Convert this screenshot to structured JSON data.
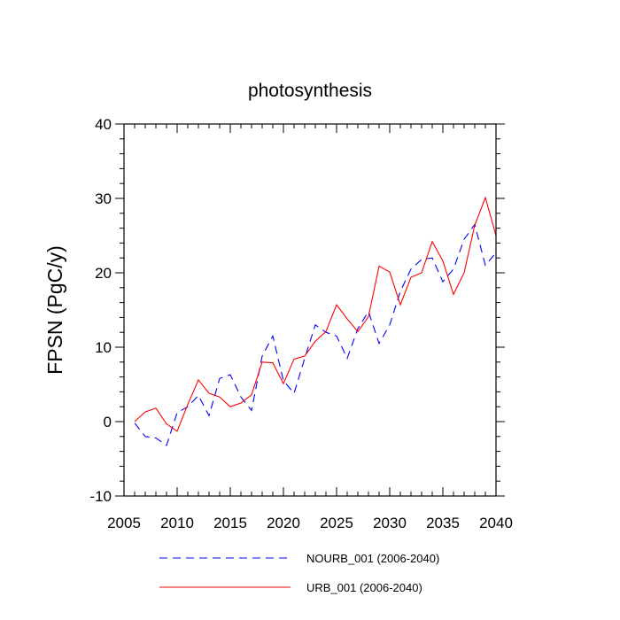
{
  "chart_data": {
    "type": "line",
    "title": "photosynthesis",
    "xlabel": "",
    "ylabel": "FPSN  (PgC/y)",
    "xlim": [
      2005,
      2040
    ],
    "ylim": [
      -10,
      40
    ],
    "xticks": [
      2005,
      2010,
      2015,
      2020,
      2025,
      2030,
      2035,
      2040
    ],
    "yticks": [
      -10,
      0,
      10,
      20,
      30,
      40
    ],
    "grid": false,
    "legend_position": "bottom",
    "x": [
      2006,
      2007,
      2008,
      2009,
      2010,
      2011,
      2012,
      2013,
      2014,
      2015,
      2016,
      2017,
      2018,
      2019,
      2020,
      2021,
      2022,
      2023,
      2024,
      2025,
      2026,
      2027,
      2028,
      2029,
      2030,
      2031,
      2032,
      2033,
      2034,
      2035,
      2036,
      2037,
      2038,
      2039,
      2040
    ],
    "series": [
      {
        "name": "NOURB_001 (2006-2040)",
        "color": "#0000ff",
        "dash": "dashed",
        "values": [
          -0.2,
          -2.0,
          -2.2,
          -3.2,
          1.2,
          2.0,
          3.5,
          0.8,
          5.8,
          6.3,
          3.3,
          1.5,
          8.8,
          11.5,
          5.5,
          3.8,
          8.5,
          13.0,
          12.0,
          11.5,
          8.5,
          12.5,
          14.8,
          10.5,
          13.0,
          17.5,
          20.5,
          21.8,
          22.0,
          18.8,
          20.5,
          24.5,
          26.5,
          21.0,
          22.7
        ]
      },
      {
        "name": "URB_001 (2006-2040)",
        "color": "#ff0000",
        "dash": "solid",
        "values": [
          0.0,
          1.3,
          1.8,
          -0.3,
          -1.3,
          2.3,
          5.6,
          3.8,
          3.3,
          2.0,
          2.5,
          3.6,
          8.0,
          7.9,
          5.1,
          8.4,
          8.8,
          10.8,
          12.1,
          15.7,
          13.8,
          12.1,
          14.1,
          20.9,
          20.1,
          15.7,
          19.4,
          20.0,
          24.2,
          21.6,
          17.1,
          20.0,
          26.4,
          30.1,
          25.0
        ]
      }
    ]
  }
}
